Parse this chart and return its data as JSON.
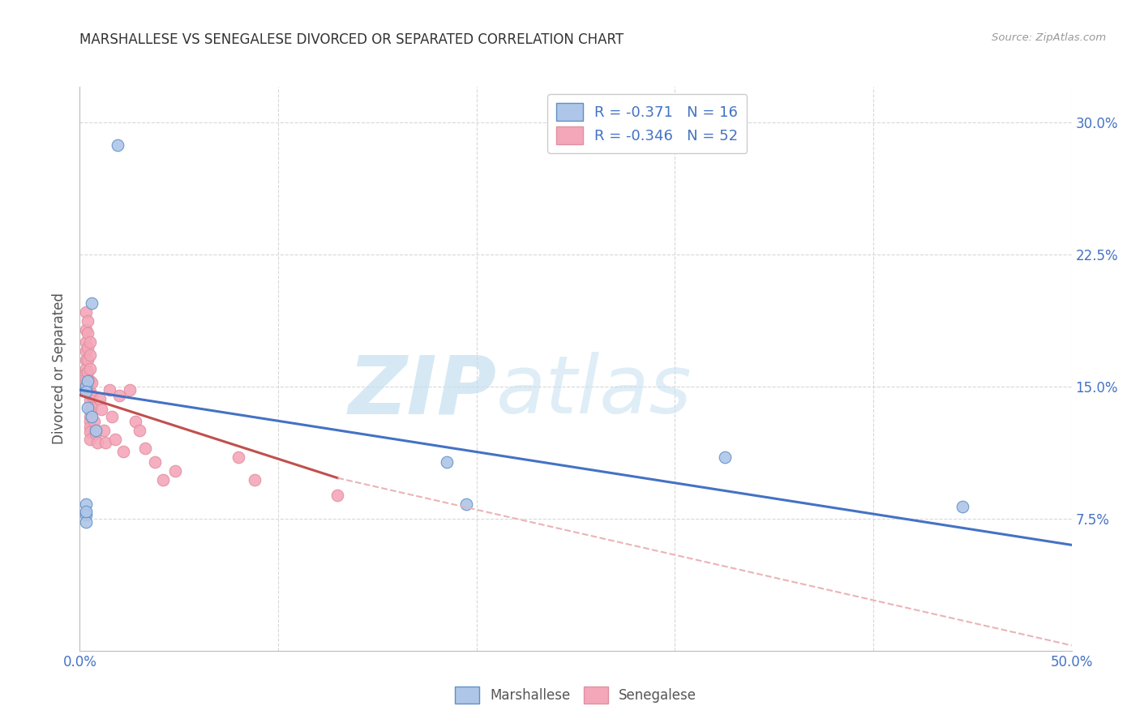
{
  "title": "MARSHALLESE VS SENEGALESE DIVORCED OR SEPARATED CORRELATION CHART",
  "source": "Source: ZipAtlas.com",
  "ylabel": "Divorced or Separated",
  "xlim": [
    0.0,
    0.5
  ],
  "ylim": [
    0.0,
    0.32
  ],
  "xticks": [
    0.0,
    0.1,
    0.2,
    0.3,
    0.4,
    0.5
  ],
  "xtick_labels": [
    "0.0%",
    "",
    "",
    "",
    "",
    "50.0%"
  ],
  "ytick_labels": [
    "7.5%",
    "15.0%",
    "22.5%",
    "30.0%"
  ],
  "yticks": [
    0.075,
    0.15,
    0.225,
    0.3
  ],
  "legend_r_marshallese": "-0.371",
  "legend_n_marshallese": "16",
  "legend_r_senegalese": "-0.346",
  "legend_n_senegalese": "52",
  "marshallese_color": "#aec6e8",
  "senegalese_color": "#f4a7b9",
  "trendline_marshallese_color": "#4472c4",
  "trendline_senegalese_solid_color": "#c0504d",
  "trendline_senegalese_dashed_color": "#e8b4b8",
  "watermark_zip_color": "#c5dff0",
  "watermark_atlas_color": "#c5dff0",
  "title_fontsize": 12,
  "label_color": "#4472c4",
  "axis_label_color": "#555555",
  "grid_color": "#d8d8d8",
  "marshallese_x": [
    0.019,
    0.006,
    0.004,
    0.006,
    0.008,
    0.003,
    0.004,
    0.003,
    0.185,
    0.003,
    0.003,
    0.003,
    0.003,
    0.325,
    0.445,
    0.195
  ],
  "marshallese_y": [
    0.287,
    0.197,
    0.138,
    0.133,
    0.125,
    0.15,
    0.153,
    0.147,
    0.107,
    0.083,
    0.077,
    0.073,
    0.079,
    0.11,
    0.082,
    0.083
  ],
  "senegalese_x": [
    0.003,
    0.003,
    0.003,
    0.003,
    0.003,
    0.003,
    0.003,
    0.003,
    0.003,
    0.003,
    0.004,
    0.004,
    0.004,
    0.004,
    0.004,
    0.005,
    0.005,
    0.005,
    0.005,
    0.005,
    0.005,
    0.005,
    0.005,
    0.005,
    0.005,
    0.005,
    0.005,
    0.006,
    0.006,
    0.006,
    0.007,
    0.008,
    0.009,
    0.01,
    0.011,
    0.012,
    0.013,
    0.015,
    0.016,
    0.018,
    0.02,
    0.022,
    0.025,
    0.028,
    0.03,
    0.033,
    0.038,
    0.042,
    0.048,
    0.08,
    0.088,
    0.13
  ],
  "senegalese_y": [
    0.192,
    0.182,
    0.175,
    0.17,
    0.165,
    0.16,
    0.157,
    0.154,
    0.151,
    0.148,
    0.187,
    0.18,
    0.172,
    0.165,
    0.158,
    0.175,
    0.168,
    0.16,
    0.153,
    0.147,
    0.142,
    0.137,
    0.133,
    0.13,
    0.127,
    0.124,
    0.12,
    0.152,
    0.145,
    0.138,
    0.13,
    0.123,
    0.118,
    0.143,
    0.137,
    0.125,
    0.118,
    0.148,
    0.133,
    0.12,
    0.145,
    0.113,
    0.148,
    0.13,
    0.125,
    0.115,
    0.107,
    0.097,
    0.102,
    0.11,
    0.097,
    0.088
  ],
  "trendline_marsh_x0": 0.0,
  "trendline_marsh_y0": 0.148,
  "trendline_marsh_x1": 0.5,
  "trendline_marsh_y1": 0.06,
  "trendline_sene_x0": 0.0,
  "trendline_sene_y0": 0.145,
  "trendline_sene_solid_x1": 0.13,
  "trendline_sene_solid_y1": 0.098,
  "trendline_sene_dash_x1": 0.5,
  "trendline_sene_dash_y1": 0.003
}
